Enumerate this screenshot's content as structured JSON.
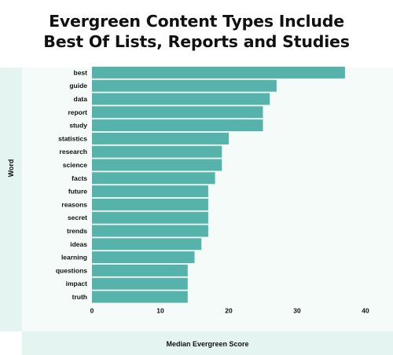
{
  "chart_data": {
    "type": "bar",
    "orientation": "horizontal",
    "title": "Evergreen Content Types Include Best Of Lists, Reports and Studies",
    "xlabel": "Median Evergreen Score",
    "ylabel": "Word",
    "categories": [
      "best",
      "guide",
      "data",
      "report",
      "study",
      "statistics",
      "research",
      "science",
      "facts",
      "future",
      "reasons",
      "secret",
      "trends",
      "ideas",
      "learning",
      "questions",
      "impact",
      "truth"
    ],
    "values": [
      37,
      27,
      26,
      25,
      25,
      20,
      19,
      19,
      18,
      17,
      17,
      17,
      17,
      16,
      15,
      14,
      14,
      14
    ],
    "xlim": [
      0,
      40
    ],
    "xticks": [
      0,
      10,
      20,
      30,
      40
    ],
    "grid": false,
    "bar_color": "#56b3ab"
  }
}
